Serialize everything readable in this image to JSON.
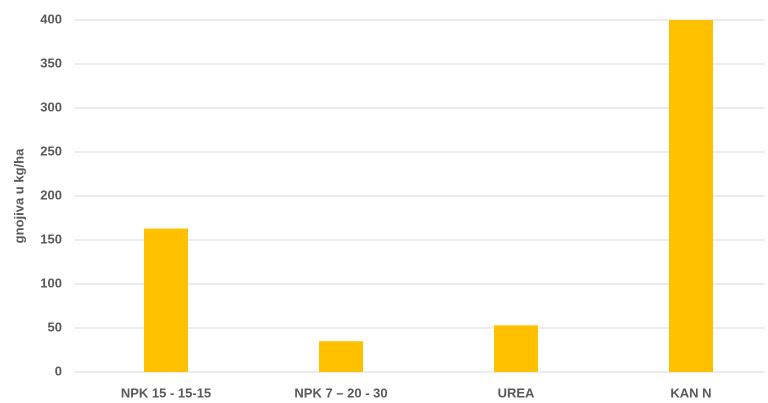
{
  "chart_data": {
    "type": "bar",
    "y_axis_label": "gnojiva u kg/ha",
    "categories": [
      "NPK 15 - 15-15",
      "NPK 7 – 20 - 30",
      "UREA",
      "KAN N"
    ],
    "values": [
      163,
      35,
      53,
      400
    ],
    "color": "#ffc000",
    "ylim": [
      0,
      400
    ],
    "yticks": [
      0,
      50,
      100,
      150,
      200,
      250,
      300,
      350,
      400
    ],
    "grid": true
  }
}
